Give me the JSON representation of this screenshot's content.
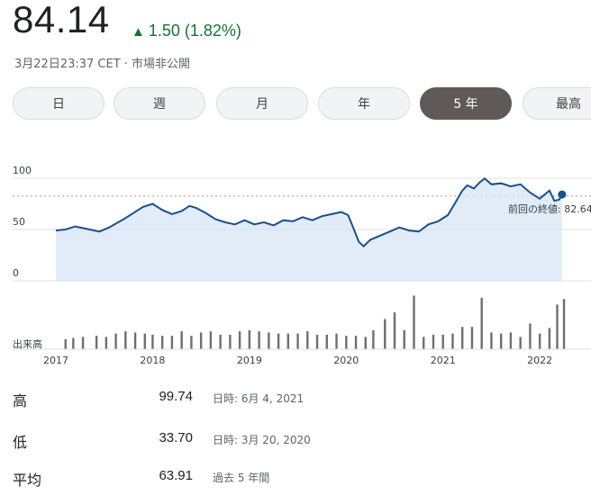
{
  "quote": {
    "price": "84.14",
    "change": "1.50 (1.82%)",
    "change_color": "#137333",
    "meta": "3月22日23:37 CET · 市場非公開"
  },
  "tabs": [
    {
      "label": "日"
    },
    {
      "label": "週"
    },
    {
      "label": "月"
    },
    {
      "label": "年"
    },
    {
      "label": "5 年",
      "active": true
    },
    {
      "label": "最高"
    }
  ],
  "chart_data": {
    "type": "area",
    "x_ticks": [
      "2017",
      "2018",
      "2019",
      "2020",
      "2021",
      "2022"
    ],
    "y_ticks": [
      "100",
      "50",
      "0"
    ],
    "ylim": [
      0,
      100
    ],
    "volume_label": "出来高",
    "tooltip": "前回の終値: 82.64",
    "previous_close": 82.64,
    "line_color": "#1a4f8c",
    "fill_color": "#d7e6f6",
    "series": [
      {
        "x": 2017.0,
        "y": 49
      },
      {
        "x": 2017.1,
        "y": 50
      },
      {
        "x": 2017.2,
        "y": 53
      },
      {
        "x": 2017.3,
        "y": 51
      },
      {
        "x": 2017.45,
        "y": 48
      },
      {
        "x": 2017.55,
        "y": 52
      },
      {
        "x": 2017.7,
        "y": 60
      },
      {
        "x": 2017.8,
        "y": 66
      },
      {
        "x": 2017.9,
        "y": 72
      },
      {
        "x": 2018.0,
        "y": 75
      },
      {
        "x": 2018.1,
        "y": 69
      },
      {
        "x": 2018.2,
        "y": 65
      },
      {
        "x": 2018.3,
        "y": 68
      },
      {
        "x": 2018.38,
        "y": 73
      },
      {
        "x": 2018.45,
        "y": 71
      },
      {
        "x": 2018.55,
        "y": 66
      },
      {
        "x": 2018.65,
        "y": 60
      },
      {
        "x": 2018.75,
        "y": 57
      },
      {
        "x": 2018.85,
        "y": 55
      },
      {
        "x": 2018.95,
        "y": 59
      },
      {
        "x": 2019.05,
        "y": 55
      },
      {
        "x": 2019.15,
        "y": 57
      },
      {
        "x": 2019.25,
        "y": 54
      },
      {
        "x": 2019.35,
        "y": 59
      },
      {
        "x": 2019.45,
        "y": 58
      },
      {
        "x": 2019.55,
        "y": 62
      },
      {
        "x": 2019.65,
        "y": 59
      },
      {
        "x": 2019.75,
        "y": 63
      },
      {
        "x": 2019.85,
        "y": 65
      },
      {
        "x": 2019.95,
        "y": 67
      },
      {
        "x": 2020.02,
        "y": 64
      },
      {
        "x": 2020.08,
        "y": 50
      },
      {
        "x": 2020.13,
        "y": 38
      },
      {
        "x": 2020.18,
        "y": 33.7
      },
      {
        "x": 2020.25,
        "y": 40
      },
      {
        "x": 2020.35,
        "y": 44
      },
      {
        "x": 2020.45,
        "y": 48
      },
      {
        "x": 2020.55,
        "y": 52
      },
      {
        "x": 2020.65,
        "y": 49
      },
      {
        "x": 2020.75,
        "y": 48
      },
      {
        "x": 2020.85,
        "y": 55
      },
      {
        "x": 2020.95,
        "y": 58
      },
      {
        "x": 2021.05,
        "y": 64
      },
      {
        "x": 2021.12,
        "y": 75
      },
      {
        "x": 2021.2,
        "y": 88
      },
      {
        "x": 2021.25,
        "y": 93
      },
      {
        "x": 2021.32,
        "y": 90
      },
      {
        "x": 2021.38,
        "y": 96
      },
      {
        "x": 2021.43,
        "y": 99.74
      },
      {
        "x": 2021.5,
        "y": 94
      },
      {
        "x": 2021.6,
        "y": 95
      },
      {
        "x": 2021.7,
        "y": 92
      },
      {
        "x": 2021.8,
        "y": 94
      },
      {
        "x": 2021.9,
        "y": 86
      },
      {
        "x": 2022.0,
        "y": 80
      },
      {
        "x": 2022.1,
        "y": 88
      },
      {
        "x": 2022.15,
        "y": 78
      },
      {
        "x": 2022.2,
        "y": 79
      },
      {
        "x": 2022.23,
        "y": 84.14
      }
    ],
    "volume": [
      {
        "x": 2017.1,
        "v": 18
      },
      {
        "x": 2017.18,
        "v": 20
      },
      {
        "x": 2017.28,
        "v": 22
      },
      {
        "x": 2017.42,
        "v": 24
      },
      {
        "x": 2017.52,
        "v": 22
      },
      {
        "x": 2017.62,
        "v": 28
      },
      {
        "x": 2017.72,
        "v": 32
      },
      {
        "x": 2017.82,
        "v": 30
      },
      {
        "x": 2017.92,
        "v": 28
      },
      {
        "x": 2018.0,
        "v": 26
      },
      {
        "x": 2018.1,
        "v": 24
      },
      {
        "x": 2018.2,
        "v": 24
      },
      {
        "x": 2018.3,
        "v": 32
      },
      {
        "x": 2018.4,
        "v": 24
      },
      {
        "x": 2018.5,
        "v": 30
      },
      {
        "x": 2018.6,
        "v": 32
      },
      {
        "x": 2018.7,
        "v": 26
      },
      {
        "x": 2018.8,
        "v": 26
      },
      {
        "x": 2018.9,
        "v": 32
      },
      {
        "x": 2019.0,
        "v": 34
      },
      {
        "x": 2019.1,
        "v": 32
      },
      {
        "x": 2019.2,
        "v": 30
      },
      {
        "x": 2019.3,
        "v": 28
      },
      {
        "x": 2019.4,
        "v": 28
      },
      {
        "x": 2019.5,
        "v": 28
      },
      {
        "x": 2019.6,
        "v": 32
      },
      {
        "x": 2019.7,
        "v": 26
      },
      {
        "x": 2019.8,
        "v": 26
      },
      {
        "x": 2019.9,
        "v": 28
      },
      {
        "x": 2020.0,
        "v": 24
      },
      {
        "x": 2020.1,
        "v": 24
      },
      {
        "x": 2020.2,
        "v": 22
      },
      {
        "x": 2020.28,
        "v": 34
      },
      {
        "x": 2020.4,
        "v": 54
      },
      {
        "x": 2020.5,
        "v": 66
      },
      {
        "x": 2020.6,
        "v": 34
      },
      {
        "x": 2020.7,
        "v": 96
      },
      {
        "x": 2020.8,
        "v": 22
      },
      {
        "x": 2020.9,
        "v": 26
      },
      {
        "x": 2021.0,
        "v": 26
      },
      {
        "x": 2021.1,
        "v": 28
      },
      {
        "x": 2021.2,
        "v": 40
      },
      {
        "x": 2021.3,
        "v": 40
      },
      {
        "x": 2021.4,
        "v": 92
      },
      {
        "x": 2021.5,
        "v": 30
      },
      {
        "x": 2021.6,
        "v": 28
      },
      {
        "x": 2021.7,
        "v": 30
      },
      {
        "x": 2021.8,
        "v": 22
      },
      {
        "x": 2021.9,
        "v": 46
      },
      {
        "x": 2022.0,
        "v": 28
      },
      {
        "x": 2022.1,
        "v": 38
      },
      {
        "x": 2022.18,
        "v": 80
      },
      {
        "x": 2022.25,
        "v": 90
      }
    ]
  },
  "stats": [
    {
      "label": "高",
      "value": "99.74",
      "note": "日時: 6月 4, 2021"
    },
    {
      "label": "低",
      "value": "33.70",
      "note": "日時: 3月 20, 2020"
    },
    {
      "label": "平均",
      "value": "63.91",
      "note": "過去 5 年間"
    }
  ]
}
